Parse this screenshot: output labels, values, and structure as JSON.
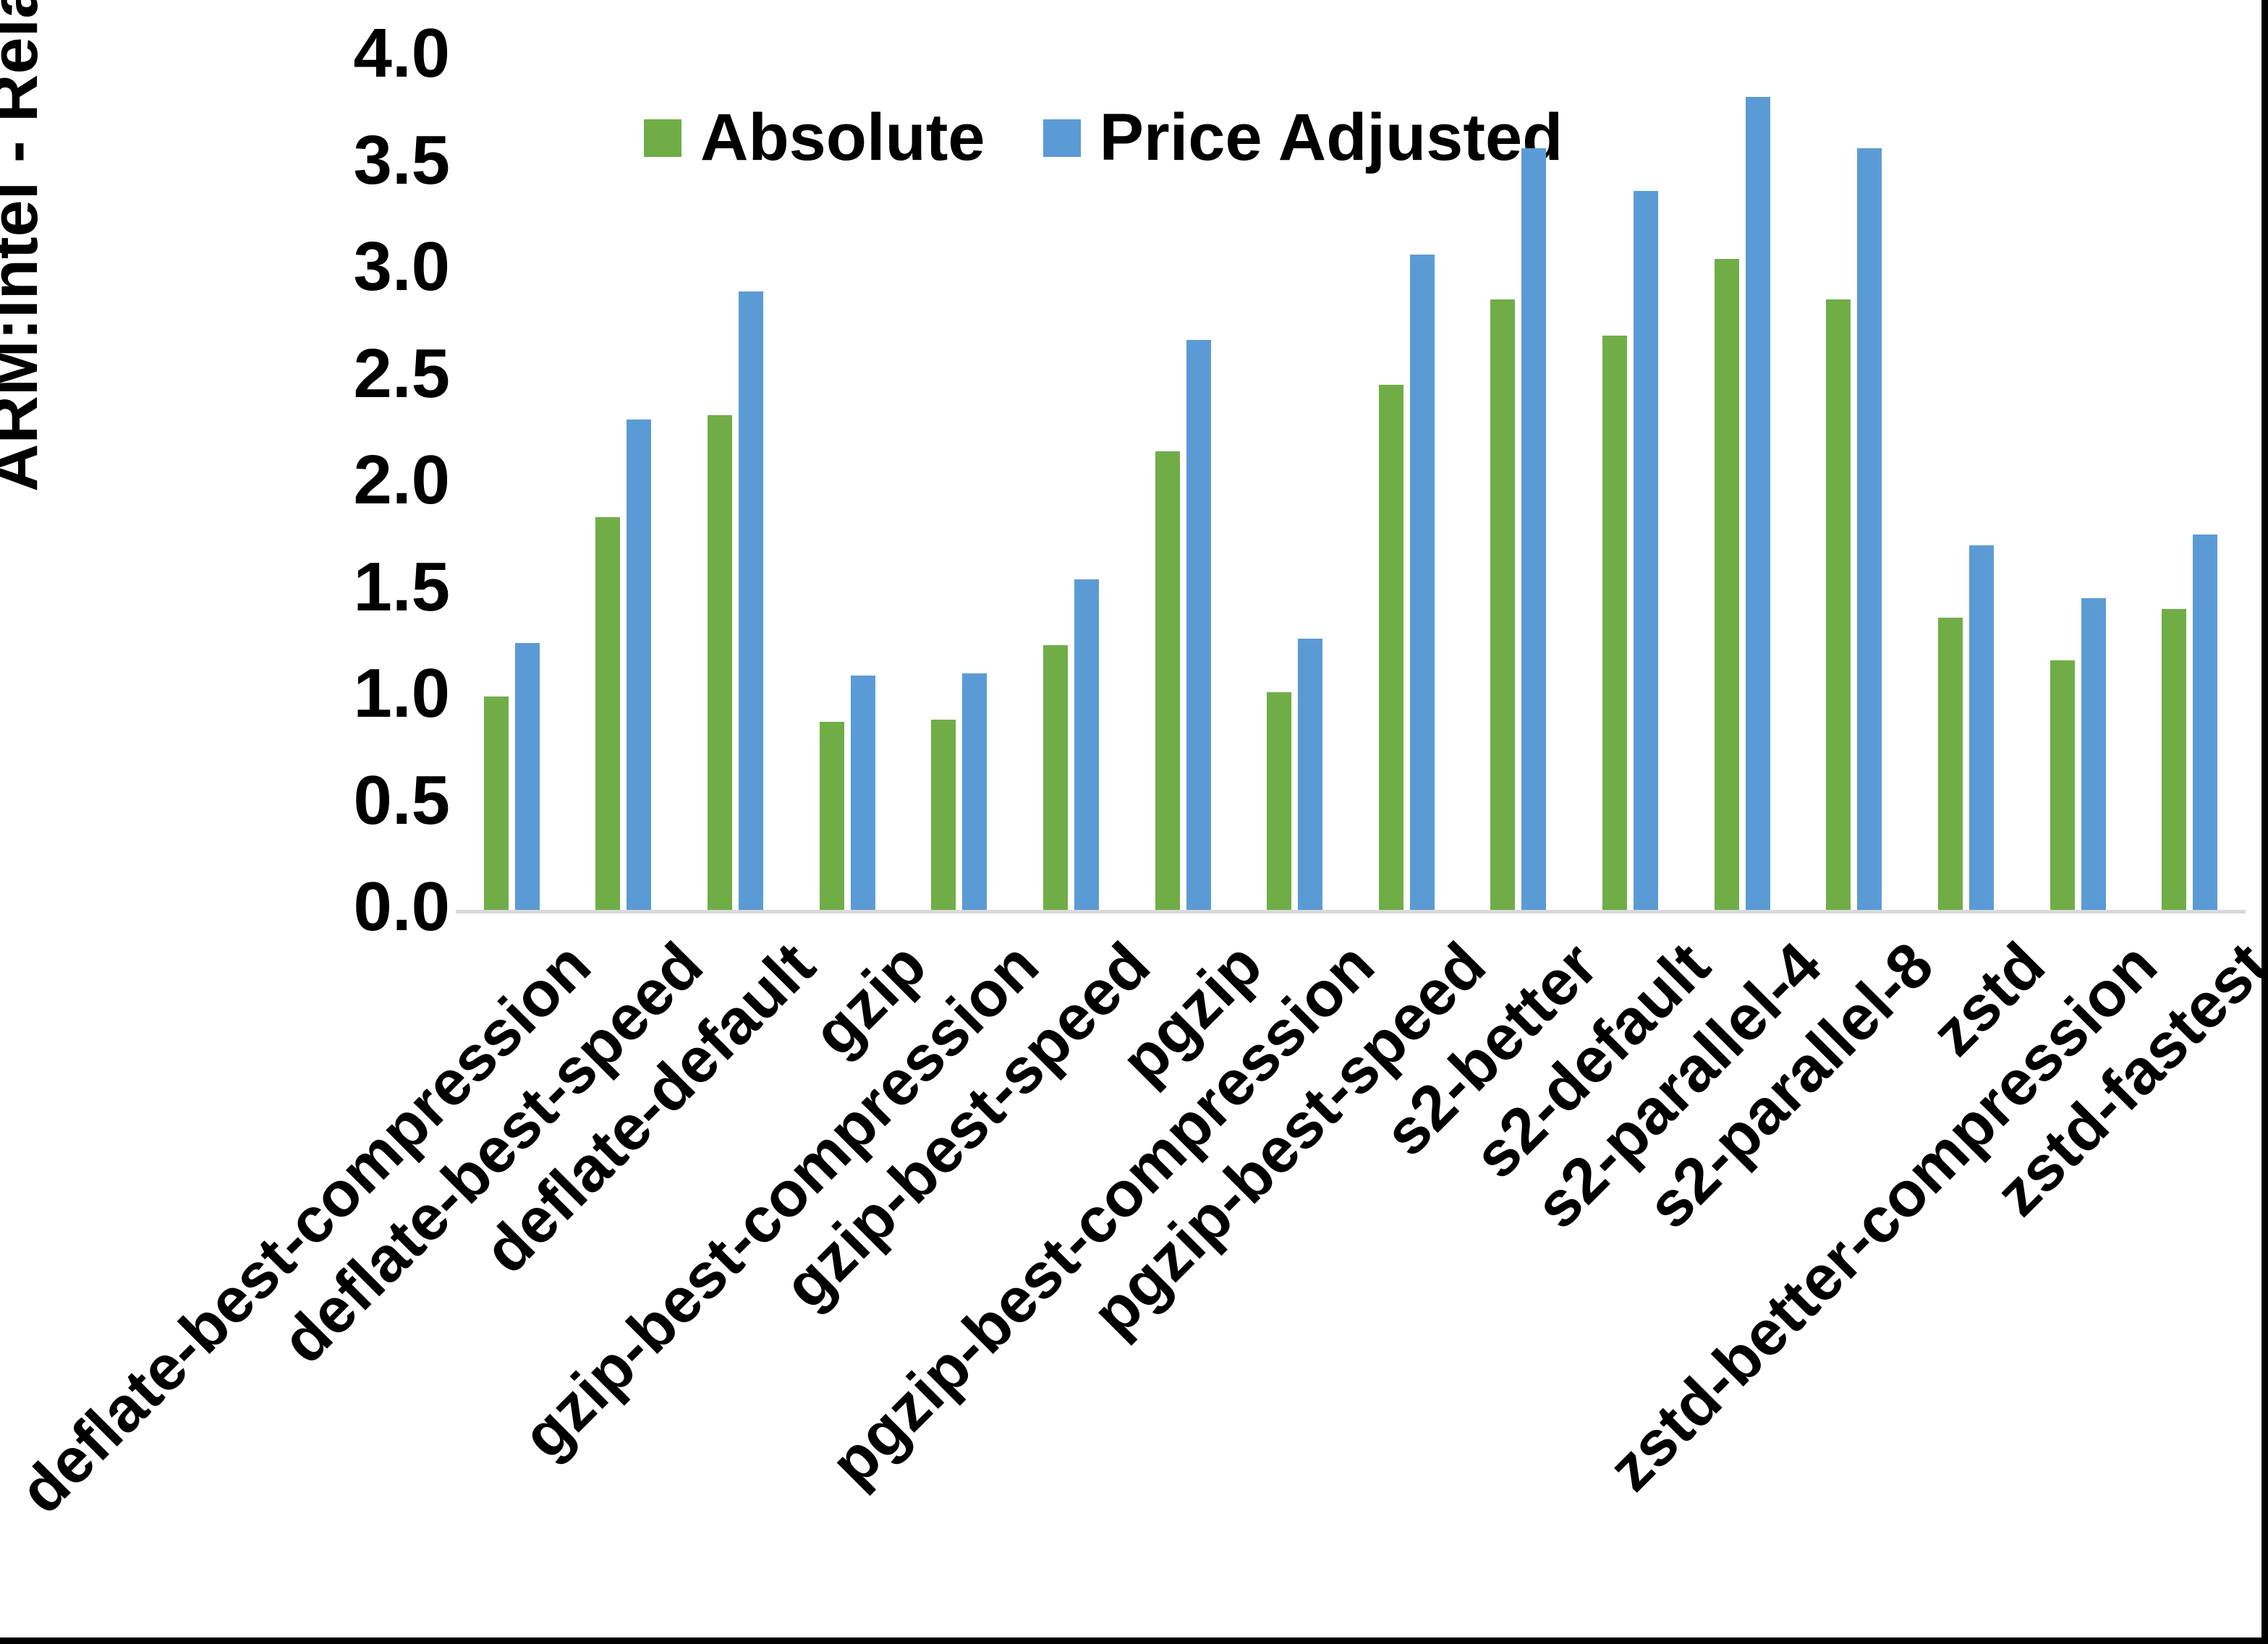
{
  "chart_data": {
    "type": "bar",
    "title": "",
    "xlabel": "",
    "ylabel": "ARM:Intel - Relative Performance",
    "ylim": [
      0,
      4.0
    ],
    "ytick_step": 0.5,
    "ytick_labels": [
      "4.0",
      "3.5",
      "3.0",
      "2.5",
      "2.0",
      "1.5",
      "1.0",
      "0.5",
      "0.0"
    ],
    "grid": false,
    "legend_position": "top-center",
    "categories": [
      "deflate-best-compression",
      "deflate-best-speed",
      "deflate-default",
      "gzip",
      "gzip-best-compression",
      "gzip-best-speed",
      "pgzip",
      "pgzip-best-compression",
      "pgzip-best-speed",
      "s2-better",
      "s2-default",
      "s2-parallel-4",
      "s2-parallel-8",
      "zstd",
      "zstd-better-compression",
      "zstd-fastest"
    ],
    "series": [
      {
        "name": "Absolute",
        "color": "#70AD47",
        "values": [
          1.0,
          1.84,
          2.32,
          0.88,
          0.89,
          1.24,
          2.15,
          1.02,
          2.46,
          2.86,
          2.69,
          3.05,
          2.86,
          1.37,
          1.17,
          1.41
        ]
      },
      {
        "name": "Price Adjusted",
        "color": "#5B9BD5",
        "values": [
          1.25,
          2.3,
          2.9,
          1.1,
          1.11,
          1.55,
          2.67,
          1.27,
          3.07,
          3.57,
          3.37,
          3.81,
          3.57,
          1.71,
          1.46,
          1.76
        ]
      }
    ]
  },
  "colors": {
    "background": "#FFFFFF",
    "axis_line": "#D9D9D9",
    "text": "#000000",
    "frame": "#000000"
  }
}
